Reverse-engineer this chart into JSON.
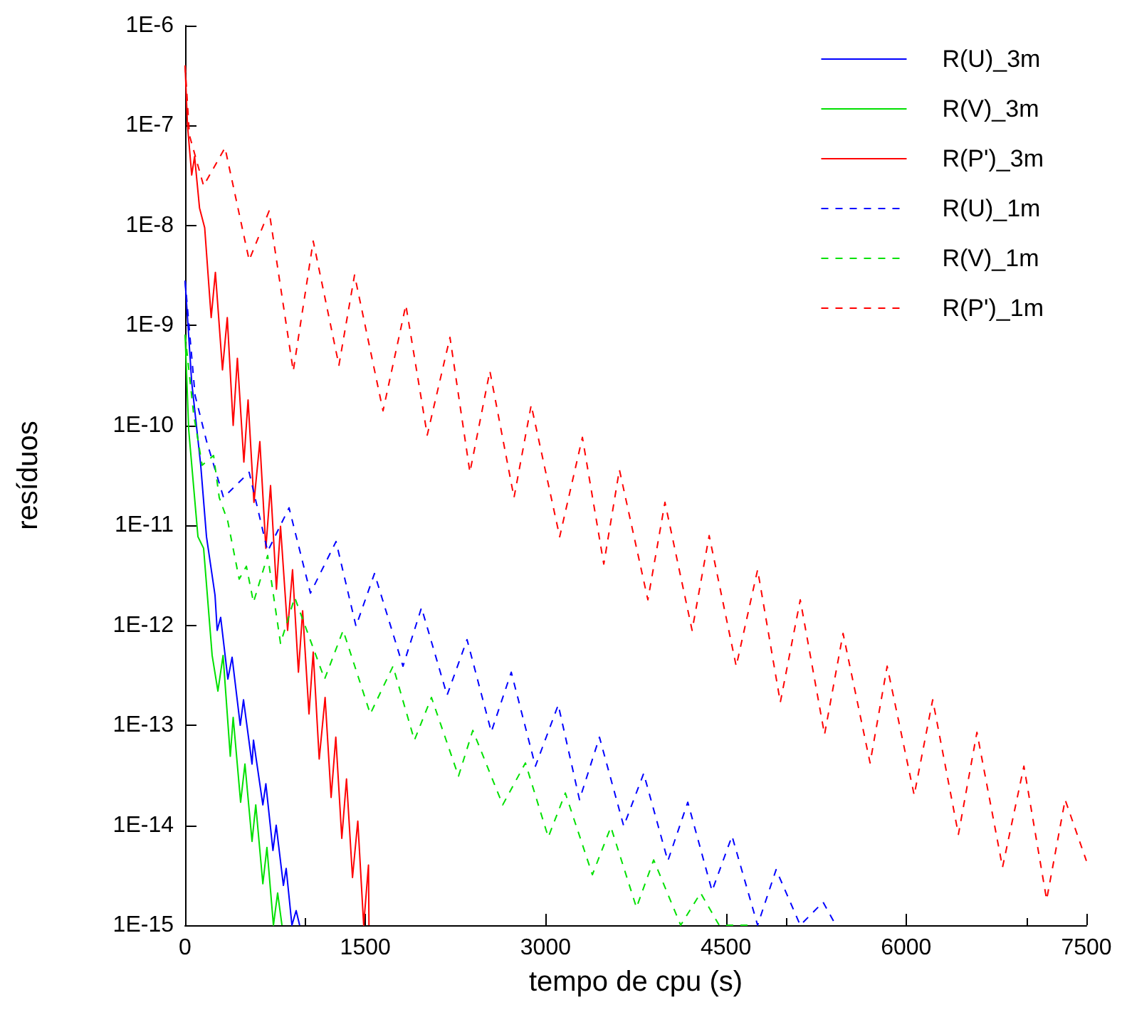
{
  "chart_data": {
    "type": "line",
    "xlabel": "tempo de cpu (s)",
    "ylabel": "resíduos",
    "log": "y",
    "grid": false,
    "legend": "top right",
    "marker": "none",
    "xlim": [
      0,
      7500
    ],
    "xticks": [
      0,
      1500,
      3000,
      4500,
      6000,
      7500
    ],
    "ylim": [
      1e-15,
      1e-06
    ],
    "yticks": [
      {
        "value": 1e-06,
        "label": "1E-6"
      },
      {
        "value": 1e-07,
        "label": "1E-7"
      },
      {
        "value": 1e-08,
        "label": "1E-8"
      },
      {
        "value": 1e-09,
        "label": "1E-9"
      },
      {
        "value": 1e-10,
        "label": "1E-10"
      },
      {
        "value": 1e-11,
        "label": "1E-11"
      },
      {
        "value": 1e-12,
        "label": "1E-12"
      },
      {
        "value": 1e-13,
        "label": "1E-13"
      },
      {
        "value": 1e-14,
        "label": "1E-14"
      },
      {
        "value": 1e-15,
        "label": "1E-15"
      }
    ],
    "series": [
      {
        "name": "R(U)_3m",
        "color": "#0000ff",
        "line_style": "solid",
        "x": [
          0,
          55,
          130,
          178,
          249,
          267,
          296,
          356,
          391,
          459,
          486,
          557,
          569,
          647,
          672,
          731,
          758,
          818,
          841,
          889,
          924,
          953
        ],
        "values": [
          2.8e-09,
          2.7e-10,
          4e-11,
          7.7e-12,
          2e-12,
          8.9e-13,
          1.2e-12,
          2.9e-13,
          4.8e-13,
          1e-13,
          1.8e-13,
          4.1e-14,
          7.1e-14,
          1.6e-14,
          2.6e-14,
          5.6e-15,
          1e-14,
          2.5e-15,
          3.7e-15,
          1e-15,
          1.4e-15,
          1e-15
        ]
      },
      {
        "name": "R(V)_3m",
        "color": "#00e000",
        "line_style": "solid",
        "x": [
          0,
          30,
          107,
          154,
          225,
          273,
          316,
          376,
          400,
          462,
          498,
          557,
          588,
          647,
          681,
          735,
          770,
          806
        ],
        "values": [
          8.1e-10,
          9e-11,
          7.7e-12,
          5.9e-12,
          5e-13,
          2.2e-13,
          5e-13,
          4.9e-14,
          1.2e-13,
          1.7e-14,
          4.1e-14,
          6.9e-15,
          1.6e-14,
          2.6e-15,
          6e-15,
          1e-15,
          2.1e-15,
          1e-15
        ]
      },
      {
        "name": "R(P')_3m",
        "color": "#ff0000",
        "line_style": "solid",
        "x": [
          0,
          20,
          55,
          79,
          120,
          163,
          217,
          252,
          311,
          351,
          400,
          435,
          489,
          524,
          573,
          622,
          672,
          711,
          760,
          794,
          853,
          894,
          943,
          978,
          1031,
          1066,
          1116,
          1165,
          1215,
          1254,
          1304,
          1343,
          1393,
          1437,
          1486,
          1526,
          1530
        ],
        "values": [
          4e-07,
          1e-07,
          3.2e-08,
          4.9e-08,
          1.5e-08,
          9.5e-09,
          1.2e-09,
          3.4e-09,
          3.6e-10,
          1.2e-09,
          1e-10,
          4.7e-10,
          4.3e-11,
          1.8e-10,
          1.7e-11,
          6.9e-11,
          5.9e-12,
          2.5e-11,
          2.3e-12,
          9.8e-12,
          8.9e-13,
          3.6e-12,
          3.4e-13,
          1.4e-12,
          1.3e-13,
          5.4e-13,
          4.6e-14,
          1.9e-13,
          1.9e-14,
          7.6e-14,
          7.4e-15,
          2.9e-14,
          3e-15,
          1.1e-14,
          1e-15,
          4e-15,
          1e-15
        ]
      },
      {
        "name": "R(U)_1m",
        "color": "#0000ff",
        "line_style": "dashed",
        "x": [
          0,
          83,
          178,
          320,
          533,
          687,
          865,
          1043,
          1256,
          1422,
          1576,
          1813,
          1967,
          2180,
          2346,
          2548,
          2714,
          2915,
          3105,
          3282,
          3448,
          3650,
          3816,
          4017,
          4183,
          4385,
          4551,
          4764,
          4918,
          5119,
          5309,
          5415
        ],
        "values": [
          2.8e-09,
          2e-10,
          7e-11,
          1.9e-11,
          3.4e-11,
          5.5e-12,
          1.5e-11,
          2.1e-12,
          6.9e-12,
          9.8e-13,
          3.3e-12,
          3.9e-13,
          1.5e-12,
          2e-13,
          7.2e-13,
          8.6e-14,
          3.4e-13,
          3.9e-14,
          1.6e-13,
          1.8e-14,
          7.6e-14,
          9.8e-15,
          3.3e-14,
          4.4e-15,
          1.7e-14,
          2.2e-15,
          7.8e-15,
          1e-15,
          3.6e-15,
          1e-15,
          1.7e-15,
          1e-15
        ]
      },
      {
        "name": "R(V)_1m",
        "color": "#00e000",
        "line_style": "dashed",
        "x": [
          0,
          71,
          142,
          237,
          284,
          355,
          450,
          510,
          569,
          687,
          794,
          912,
          1161,
          1315,
          1541,
          1730,
          1908,
          2050,
          2275,
          2394,
          2643,
          2832,
          3022,
          3164,
          3389,
          3543,
          3756,
          3899,
          4124,
          4290,
          4444,
          4681
        ],
        "values": [
          8.1e-10,
          1.3e-10,
          4e-11,
          5e-11,
          1.9e-11,
          1.1e-11,
          2.9e-12,
          3.9e-12,
          1.7e-12,
          5e-12,
          6.6e-13,
          1.9e-12,
          2.9e-13,
          8.9e-13,
          1.3e-13,
          3.9e-13,
          7.1e-14,
          1.9e-13,
          3.1e-14,
          8.9e-14,
          1.6e-14,
          4.2e-14,
          7.6e-15,
          2.1e-14,
          3.2e-15,
          9.6e-15,
          1.5e-15,
          4.5e-15,
          1e-15,
          2.1e-15,
          1e-15,
          1e-15
        ]
      },
      {
        "name": "R(P')_1m",
        "color": "#ff0000",
        "line_style": "dashed",
        "x": [
          0,
          36,
          154,
          332,
          533,
          699,
          900,
          1066,
          1280,
          1410,
          1647,
          1837,
          2015,
          2204,
          2370,
          2536,
          2737,
          2880,
          3117,
          3306,
          3484,
          3614,
          3851,
          3993,
          4219,
          4361,
          4586,
          4764,
          4953,
          5119,
          5321,
          5475,
          5700,
          5842,
          6067,
          6221,
          6435,
          6589,
          6802,
          6980,
          7169,
          7323,
          7500
        ],
        "values": [
          4e-07,
          8e-08,
          2.5e-08,
          6e-08,
          4.5e-09,
          1.4e-08,
          3.5e-10,
          7e-09,
          4e-10,
          3.2e-09,
          1.4e-10,
          1.6e-09,
          8e-11,
          7.6e-10,
          3.4e-11,
          3.5e-10,
          1.9e-11,
          1.6e-10,
          7.7e-12,
          7.6e-11,
          4.1e-12,
          3.6e-11,
          1.8e-12,
          1.7e-11,
          8.9e-13,
          7.9e-12,
          3.9e-13,
          3.6e-12,
          1.7e-13,
          1.8e-12,
          8.1e-14,
          8.3e-13,
          4.2e-14,
          3.9e-13,
          2e-14,
          1.8e-13,
          8.1e-15,
          8.5e-14,
          3.8e-15,
          3.9e-14,
          1.8e-15,
          1.8e-14,
          4.4e-15
        ]
      }
    ]
  }
}
